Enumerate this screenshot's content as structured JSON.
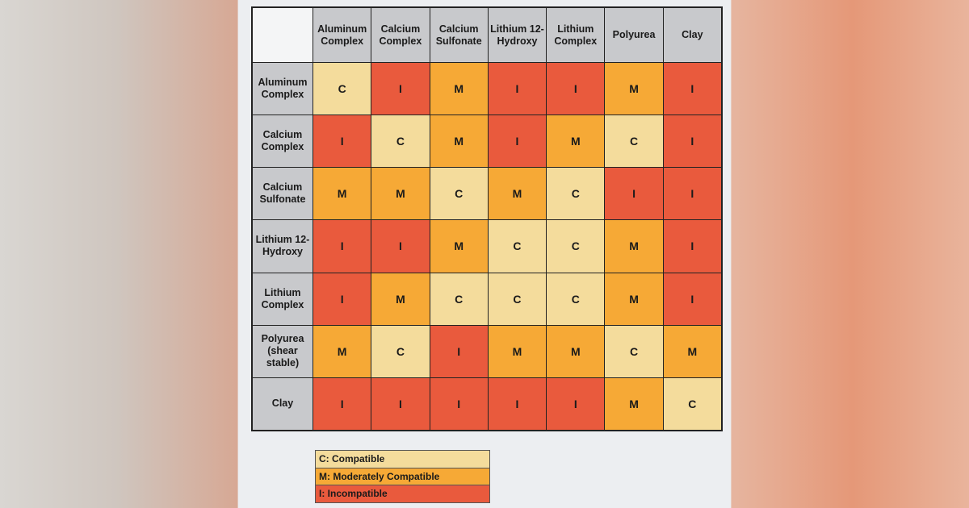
{
  "chart_data": {
    "type": "heatmap",
    "columns": [
      "Aluminum Complex",
      "Calcium Complex",
      "Calcium Sulfonate",
      "Lithium 12-Hydroxy",
      "Lithium Complex",
      "Polyurea",
      "Clay"
    ],
    "rows": [
      "Aluminum Complex",
      "Calcium Complex",
      "Calcium Sulfonate",
      "Lithium 12-Hydroxy",
      "Lithium Complex",
      "Polyurea (shear stable)",
      "Clay"
    ],
    "values": [
      [
        "C",
        "I",
        "M",
        "I",
        "I",
        "M",
        "I"
      ],
      [
        "I",
        "C",
        "M",
        "I",
        "M",
        "C",
        "I"
      ],
      [
        "M",
        "M",
        "C",
        "M",
        "C",
        "I",
        "I"
      ],
      [
        "I",
        "I",
        "M",
        "C",
        "C",
        "M",
        "I"
      ],
      [
        "I",
        "M",
        "C",
        "C",
        "C",
        "M",
        "I"
      ],
      [
        "M",
        "C",
        "I",
        "M",
        "M",
        "C",
        "M"
      ],
      [
        "I",
        "I",
        "I",
        "I",
        "I",
        "M",
        "C"
      ]
    ],
    "colors": {
      "C": "#f4dc9c",
      "M": "#f6a936",
      "I": "#e95a3d"
    },
    "legend": [
      {
        "key": "C",
        "label": "C: Compatible"
      },
      {
        "key": "M",
        "label": "M: Moderately Compatible"
      },
      {
        "key": "I",
        "label": "I:  Incompatible"
      }
    ],
    "legend_placement": "bottom-left"
  }
}
